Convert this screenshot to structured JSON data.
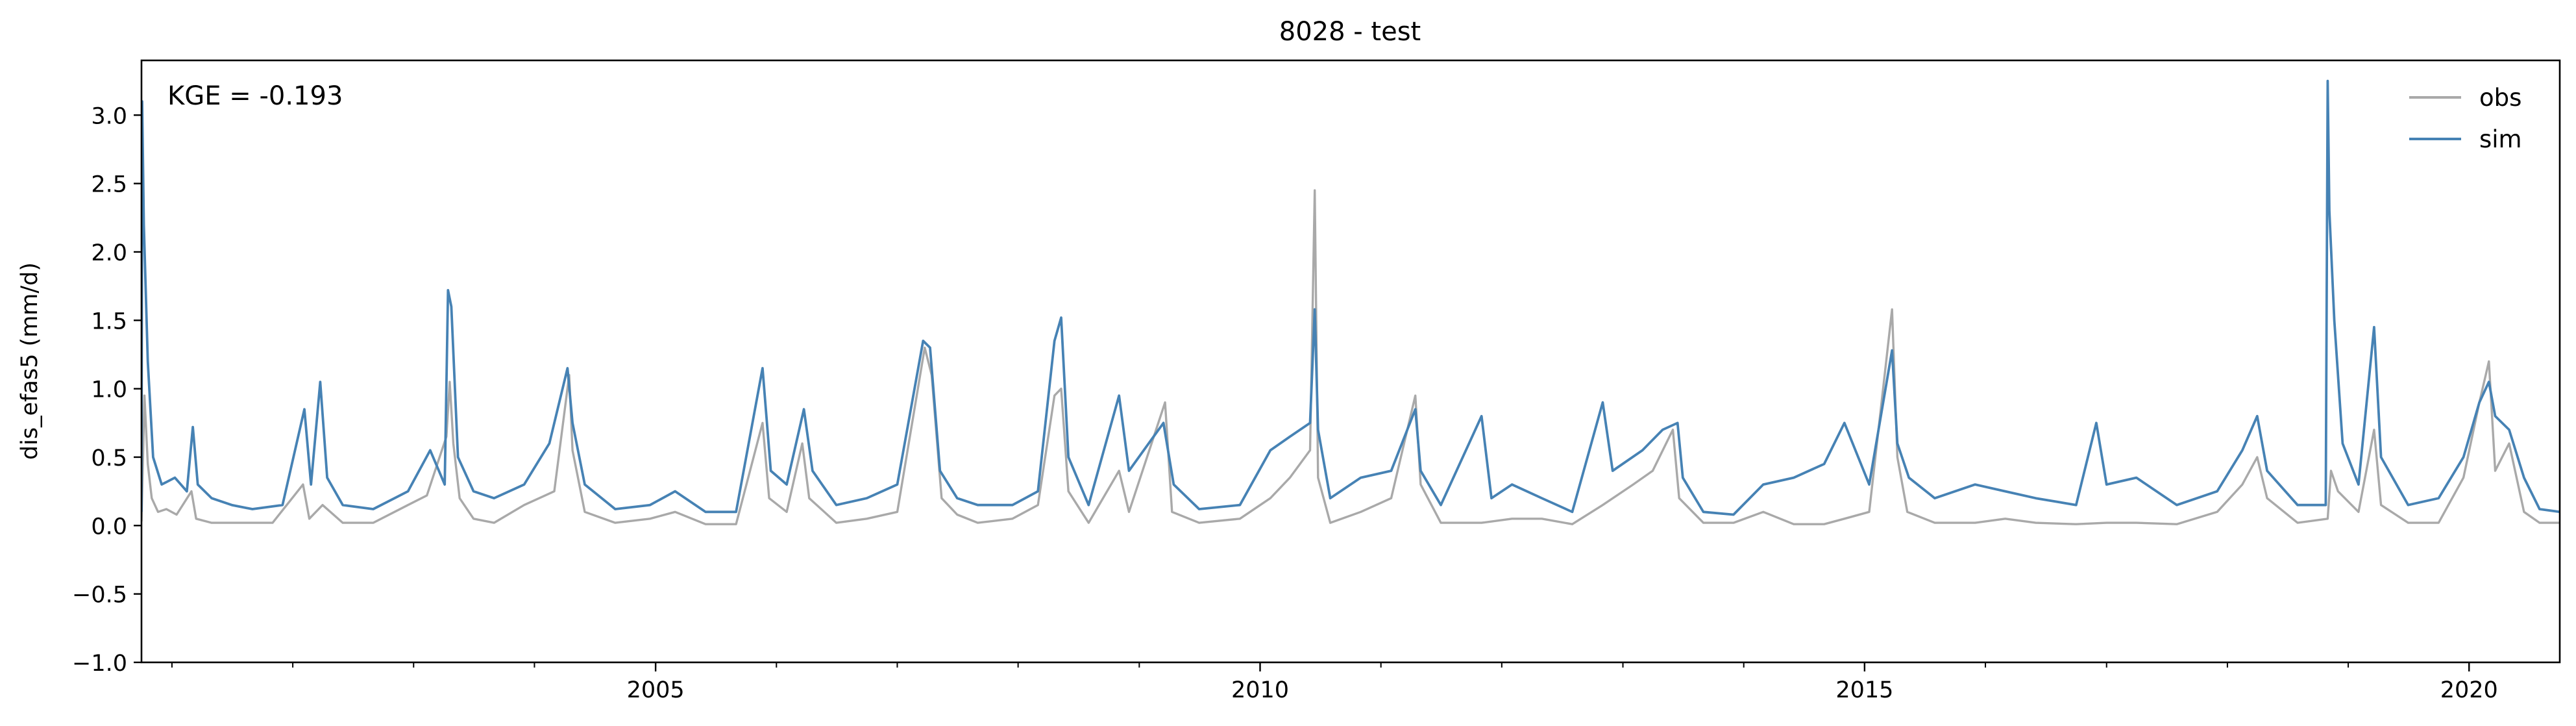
{
  "chart_data": {
    "type": "line",
    "title": "8028 - test",
    "ylabel": "dis_efas5 (mm/d)",
    "xlabel": "",
    "annotation": "KGE = -0.193",
    "xlim": [
      "2000-10-01",
      "2020-10-01"
    ],
    "ylim": [
      -1.0,
      3.4
    ],
    "y_ticks": [
      -1.0,
      -0.5,
      0.0,
      0.5,
      1.0,
      1.5,
      2.0,
      2.5,
      3.0
    ],
    "y_tick_labels": [
      "−1.0",
      "−0.5",
      "0.0",
      "0.5",
      "1.0",
      "1.5",
      "2.0",
      "2.5",
      "3.0"
    ],
    "x_major_ticks": [
      "2005-01-01",
      "2010-01-01",
      "2015-01-01",
      "2020-01-01"
    ],
    "x_major_labels": [
      "2005",
      "2010",
      "2015",
      "2020"
    ],
    "legend_position": "top-right",
    "grid": false,
    "sampling": "approximately weekly values read from the plotted curves",
    "series": [
      {
        "name": "obs",
        "color": "#a9a9a9",
        "points": [
          [
            "2000-10-01",
            0.03
          ],
          [
            "2000-10-10",
            0.95
          ],
          [
            "2000-10-20",
            0.45
          ],
          [
            "2000-11-01",
            0.2
          ],
          [
            "2000-11-20",
            0.1
          ],
          [
            "2000-12-15",
            0.12
          ],
          [
            "2001-01-15",
            0.08
          ],
          [
            "2001-03-01",
            0.25
          ],
          [
            "2001-03-15",
            0.05
          ],
          [
            "2001-05-01",
            0.02
          ],
          [
            "2001-07-01",
            0.02
          ],
          [
            "2001-09-01",
            0.02
          ],
          [
            "2001-11-01",
            0.02
          ],
          [
            "2002-02-01",
            0.3
          ],
          [
            "2002-02-20",
            0.05
          ],
          [
            "2002-04-01",
            0.15
          ],
          [
            "2002-06-01",
            0.02
          ],
          [
            "2002-09-01",
            0.02
          ],
          [
            "2002-12-15",
            0.15
          ],
          [
            "2003-02-10",
            0.22
          ],
          [
            "2003-04-10",
            0.65
          ],
          [
            "2003-04-20",
            1.05
          ],
          [
            "2003-05-01",
            0.6
          ],
          [
            "2003-05-20",
            0.2
          ],
          [
            "2003-07-01",
            0.05
          ],
          [
            "2003-09-01",
            0.02
          ],
          [
            "2003-12-01",
            0.15
          ],
          [
            "2004-03-01",
            0.25
          ],
          [
            "2004-04-15",
            1.1
          ],
          [
            "2004-04-25",
            0.55
          ],
          [
            "2004-06-01",
            0.1
          ],
          [
            "2004-09-01",
            0.02
          ],
          [
            "2004-12-15",
            0.05
          ],
          [
            "2005-03-01",
            0.1
          ],
          [
            "2005-06-01",
            0.01
          ],
          [
            "2005-09-01",
            0.01
          ],
          [
            "2005-11-20",
            0.75
          ],
          [
            "2005-12-10",
            0.2
          ],
          [
            "2006-02-01",
            0.1
          ],
          [
            "2006-03-20",
            0.6
          ],
          [
            "2006-04-10",
            0.2
          ],
          [
            "2006-07-01",
            0.02
          ],
          [
            "2006-10-01",
            0.05
          ],
          [
            "2007-01-01",
            0.1
          ],
          [
            "2007-03-25",
            1.3
          ],
          [
            "2007-04-15",
            1.1
          ],
          [
            "2007-05-15",
            0.2
          ],
          [
            "2007-07-01",
            0.08
          ],
          [
            "2007-09-01",
            0.02
          ],
          [
            "2007-12-15",
            0.05
          ],
          [
            "2008-03-01",
            0.15
          ],
          [
            "2008-04-20",
            0.95
          ],
          [
            "2008-05-10",
            1.0
          ],
          [
            "2008-06-01",
            0.25
          ],
          [
            "2008-08-01",
            0.02
          ],
          [
            "2008-11-01",
            0.4
          ],
          [
            "2008-12-01",
            0.1
          ],
          [
            "2009-03-20",
            0.9
          ],
          [
            "2009-04-10",
            0.1
          ],
          [
            "2009-07-01",
            0.02
          ],
          [
            "2009-11-01",
            0.05
          ],
          [
            "2010-02-01",
            0.2
          ],
          [
            "2010-04-01",
            0.35
          ],
          [
            "2010-06-01",
            0.55
          ],
          [
            "2010-06-15",
            2.45
          ],
          [
            "2010-06-25",
            0.35
          ],
          [
            "2010-08-01",
            0.02
          ],
          [
            "2010-11-01",
            0.1
          ],
          [
            "2011-02-01",
            0.2
          ],
          [
            "2011-04-15",
            0.95
          ],
          [
            "2011-05-01",
            0.3
          ],
          [
            "2011-07-01",
            0.02
          ],
          [
            "2011-11-01",
            0.02
          ],
          [
            "2012-02-01",
            0.05
          ],
          [
            "2012-05-01",
            0.05
          ],
          [
            "2012-08-01",
            0.01
          ],
          [
            "2012-11-01",
            0.15
          ],
          [
            "2013-02-01",
            0.3
          ],
          [
            "2013-04-01",
            0.4
          ],
          [
            "2013-06-01",
            0.7
          ],
          [
            "2013-06-20",
            0.2
          ],
          [
            "2013-09-01",
            0.02
          ],
          [
            "2013-12-01",
            0.02
          ],
          [
            "2014-03-01",
            0.1
          ],
          [
            "2014-06-01",
            0.01
          ],
          [
            "2014-09-01",
            0.01
          ],
          [
            "2014-11-01",
            0.05
          ],
          [
            "2015-01-15",
            0.1
          ],
          [
            "2015-03-25",
            1.58
          ],
          [
            "2015-04-10",
            0.5
          ],
          [
            "2015-05-10",
            0.1
          ],
          [
            "2015-08-01",
            0.02
          ],
          [
            "2015-12-01",
            0.02
          ],
          [
            "2016-03-01",
            0.05
          ],
          [
            "2016-06-01",
            0.02
          ],
          [
            "2016-10-01",
            0.01
          ],
          [
            "2017-01-01",
            0.02
          ],
          [
            "2017-04-01",
            0.02
          ],
          [
            "2017-08-01",
            0.01
          ],
          [
            "2017-12-01",
            0.1
          ],
          [
            "2018-02-15",
            0.3
          ],
          [
            "2018-04-01",
            0.5
          ],
          [
            "2018-05-01",
            0.2
          ],
          [
            "2018-08-01",
            0.02
          ],
          [
            "2018-10-31",
            0.05
          ],
          [
            "2018-11-10",
            0.4
          ],
          [
            "2018-12-01",
            0.25
          ],
          [
            "2019-02-01",
            0.1
          ],
          [
            "2019-03-20",
            0.7
          ],
          [
            "2019-04-10",
            0.15
          ],
          [
            "2019-07-01",
            0.02
          ],
          [
            "2019-10-01",
            0.02
          ],
          [
            "2019-12-15",
            0.35
          ],
          [
            "2020-02-01",
            0.9
          ],
          [
            "2020-03-01",
            1.2
          ],
          [
            "2020-03-20",
            0.4
          ],
          [
            "2020-05-01",
            0.6
          ],
          [
            "2020-06-15",
            0.1
          ],
          [
            "2020-08-01",
            0.02
          ],
          [
            "2020-10-01",
            0.02
          ]
        ]
      },
      {
        "name": "sim",
        "color": "#4682b4",
        "points": [
          [
            "2000-10-01",
            0.1
          ],
          [
            "2000-10-03",
            3.1
          ],
          [
            "2000-10-08",
            2.2
          ],
          [
            "2000-10-20",
            1.2
          ],
          [
            "2000-11-05",
            0.5
          ],
          [
            "2000-12-01",
            0.3
          ],
          [
            "2001-01-10",
            0.35
          ],
          [
            "2001-02-15",
            0.25
          ],
          [
            "2001-03-05",
            0.72
          ],
          [
            "2001-03-20",
            0.3
          ],
          [
            "2001-05-01",
            0.2
          ],
          [
            "2001-07-01",
            0.15
          ],
          [
            "2001-09-01",
            0.12
          ],
          [
            "2001-12-01",
            0.15
          ],
          [
            "2002-02-05",
            0.85
          ],
          [
            "2002-02-25",
            0.3
          ],
          [
            "2002-03-25",
            1.05
          ],
          [
            "2002-04-15",
            0.35
          ],
          [
            "2002-06-01",
            0.15
          ],
          [
            "2002-09-01",
            0.12
          ],
          [
            "2002-12-15",
            0.25
          ],
          [
            "2003-02-20",
            0.55
          ],
          [
            "2003-04-05",
            0.3
          ],
          [
            "2003-04-15",
            1.72
          ],
          [
            "2003-04-25",
            1.6
          ],
          [
            "2003-05-15",
            0.5
          ],
          [
            "2003-07-01",
            0.25
          ],
          [
            "2003-09-01",
            0.2
          ],
          [
            "2003-12-01",
            0.3
          ],
          [
            "2004-02-15",
            0.6
          ],
          [
            "2004-04-10",
            1.15
          ],
          [
            "2004-04-25",
            0.75
          ],
          [
            "2004-06-01",
            0.3
          ],
          [
            "2004-09-01",
            0.12
          ],
          [
            "2004-12-15",
            0.15
          ],
          [
            "2005-03-01",
            0.25
          ],
          [
            "2005-06-01",
            0.1
          ],
          [
            "2005-09-01",
            0.1
          ],
          [
            "2005-11-20",
            1.15
          ],
          [
            "2005-12-15",
            0.4
          ],
          [
            "2006-02-01",
            0.3
          ],
          [
            "2006-03-25",
            0.85
          ],
          [
            "2006-04-20",
            0.4
          ],
          [
            "2006-07-01",
            0.15
          ],
          [
            "2006-10-01",
            0.2
          ],
          [
            "2007-01-01",
            0.3
          ],
          [
            "2007-03-20",
            1.35
          ],
          [
            "2007-04-10",
            1.3
          ],
          [
            "2007-05-10",
            0.4
          ],
          [
            "2007-07-01",
            0.2
          ],
          [
            "2007-09-01",
            0.15
          ],
          [
            "2007-12-15",
            0.15
          ],
          [
            "2008-03-01",
            0.25
          ],
          [
            "2008-04-20",
            1.35
          ],
          [
            "2008-05-10",
            1.52
          ],
          [
            "2008-06-01",
            0.5
          ],
          [
            "2008-08-01",
            0.15
          ],
          [
            "2008-11-01",
            0.95
          ],
          [
            "2008-12-01",
            0.4
          ],
          [
            "2009-03-15",
            0.75
          ],
          [
            "2009-04-15",
            0.3
          ],
          [
            "2009-07-01",
            0.12
          ],
          [
            "2009-11-01",
            0.15
          ],
          [
            "2010-02-01",
            0.55
          ],
          [
            "2010-04-01",
            0.65
          ],
          [
            "2010-06-01",
            0.75
          ],
          [
            "2010-06-15",
            1.58
          ],
          [
            "2010-06-25",
            0.7
          ],
          [
            "2010-08-01",
            0.2
          ],
          [
            "2010-11-01",
            0.35
          ],
          [
            "2011-02-01",
            0.4
          ],
          [
            "2011-04-15",
            0.85
          ],
          [
            "2011-05-01",
            0.4
          ],
          [
            "2011-07-01",
            0.15
          ],
          [
            "2011-11-01",
            0.8
          ],
          [
            "2011-12-01",
            0.2
          ],
          [
            "2012-02-01",
            0.3
          ],
          [
            "2012-05-01",
            0.2
          ],
          [
            "2012-08-01",
            0.1
          ],
          [
            "2012-11-01",
            0.9
          ],
          [
            "2012-12-01",
            0.4
          ],
          [
            "2013-03-01",
            0.55
          ],
          [
            "2013-05-01",
            0.7
          ],
          [
            "2013-06-15",
            0.75
          ],
          [
            "2013-07-01",
            0.35
          ],
          [
            "2013-09-01",
            0.1
          ],
          [
            "2013-12-01",
            0.08
          ],
          [
            "2014-03-01",
            0.3
          ],
          [
            "2014-06-01",
            0.35
          ],
          [
            "2014-09-01",
            0.45
          ],
          [
            "2014-11-01",
            0.75
          ],
          [
            "2015-01-15",
            0.3
          ],
          [
            "2015-03-25",
            1.28
          ],
          [
            "2015-04-10",
            0.6
          ],
          [
            "2015-05-15",
            0.35
          ],
          [
            "2015-08-01",
            0.2
          ],
          [
            "2015-12-01",
            0.3
          ],
          [
            "2016-03-01",
            0.25
          ],
          [
            "2016-06-01",
            0.2
          ],
          [
            "2016-10-01",
            0.15
          ],
          [
            "2016-12-01",
            0.75
          ],
          [
            "2017-01-01",
            0.3
          ],
          [
            "2017-04-01",
            0.35
          ],
          [
            "2017-08-01",
            0.15
          ],
          [
            "2017-12-01",
            0.25
          ],
          [
            "2018-02-15",
            0.55
          ],
          [
            "2018-04-01",
            0.8
          ],
          [
            "2018-05-01",
            0.4
          ],
          [
            "2018-08-01",
            0.15
          ],
          [
            "2018-10-25",
            0.15
          ],
          [
            "2018-10-31",
            3.25
          ],
          [
            "2018-11-05",
            2.3
          ],
          [
            "2018-11-20",
            1.5
          ],
          [
            "2018-12-15",
            0.6
          ],
          [
            "2019-02-01",
            0.3
          ],
          [
            "2019-03-20",
            1.45
          ],
          [
            "2019-04-10",
            0.5
          ],
          [
            "2019-07-01",
            0.15
          ],
          [
            "2019-10-01",
            0.2
          ],
          [
            "2019-12-15",
            0.5
          ],
          [
            "2020-02-01",
            0.9
          ],
          [
            "2020-03-01",
            1.05
          ],
          [
            "2020-03-20",
            0.8
          ],
          [
            "2020-05-01",
            0.7
          ],
          [
            "2020-06-15",
            0.35
          ],
          [
            "2020-08-01",
            0.12
          ],
          [
            "2020-10-01",
            0.1
          ]
        ]
      }
    ]
  }
}
